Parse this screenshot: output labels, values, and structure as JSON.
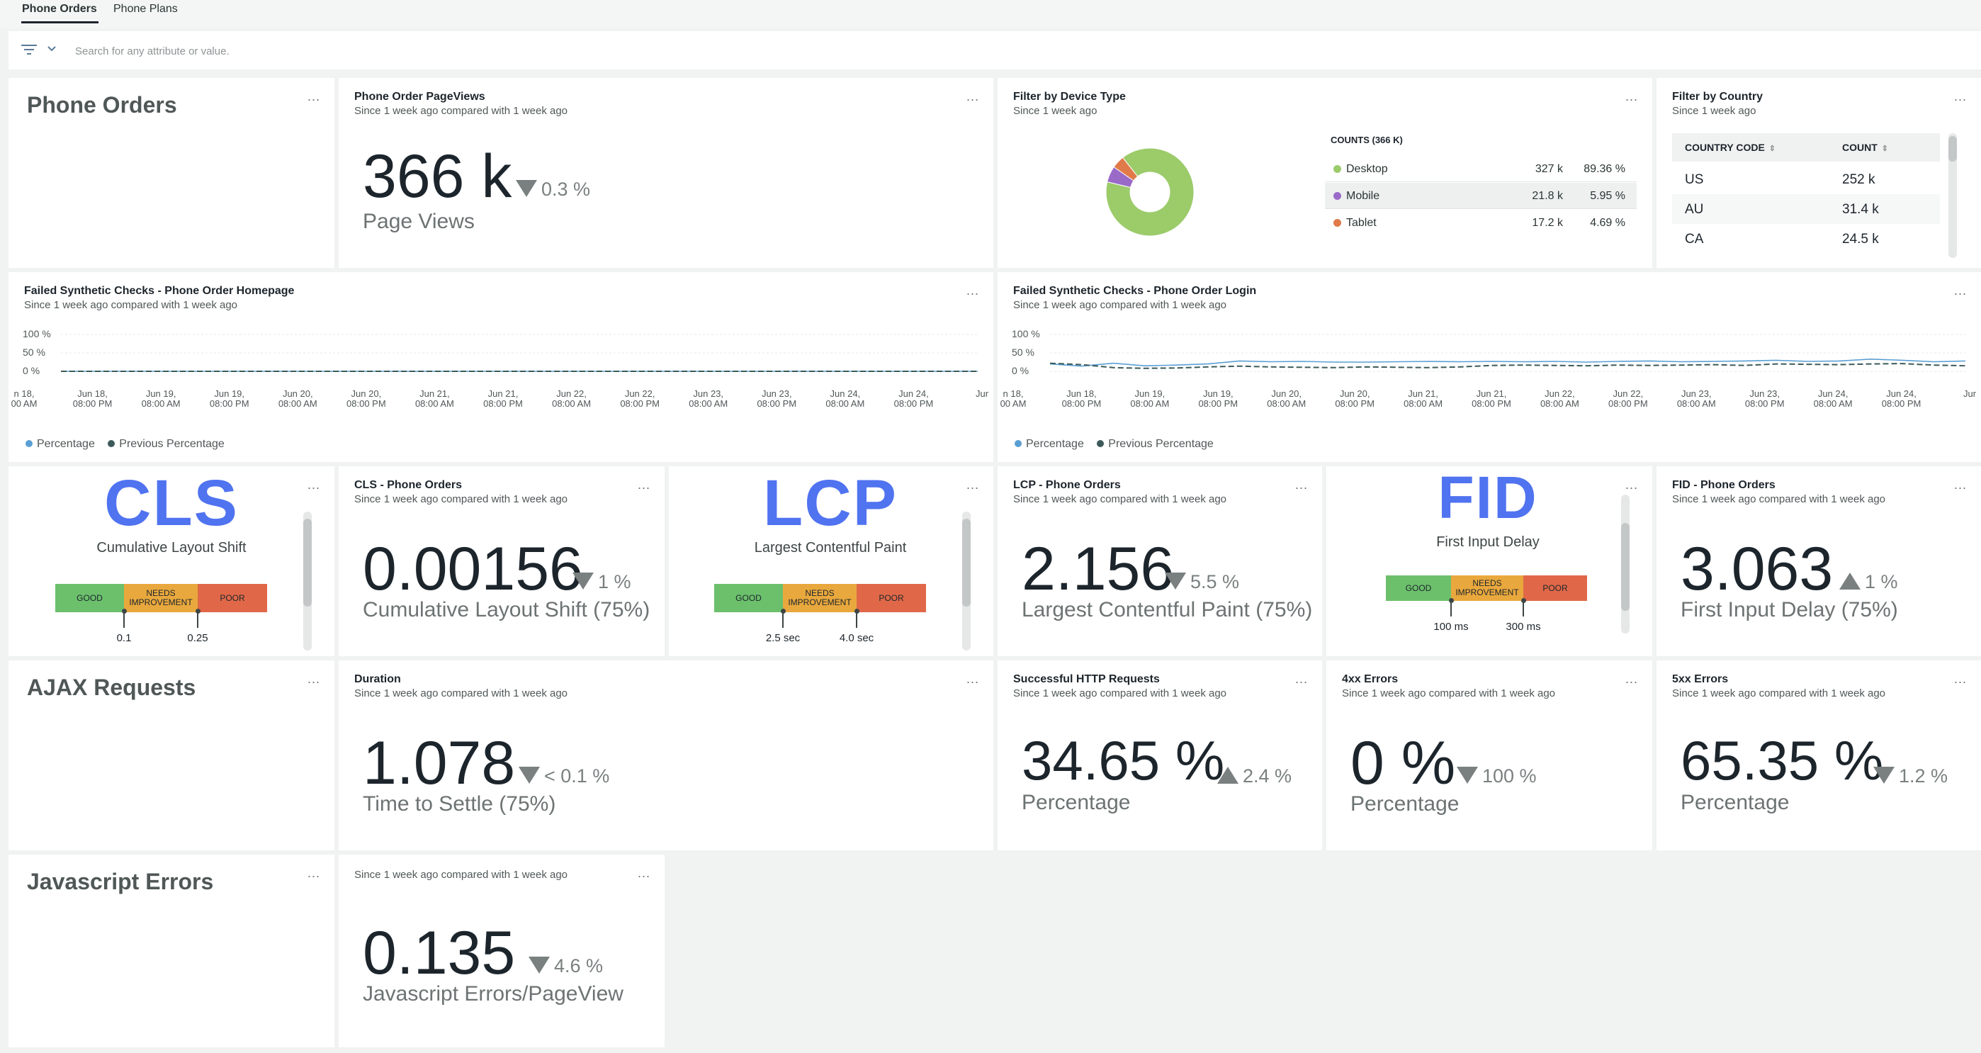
{
  "tabs": [
    "Phone Orders",
    "Phone Plans"
  ],
  "filter": {
    "placeholder": "Search for any attribute or value."
  },
  "more_label": "...",
  "sections": {
    "phone_orders": "Phone Orders",
    "ajax": "AJAX Requests",
    "js_errors": "Javascript Errors"
  },
  "pageviews": {
    "title": "Phone Order PageViews",
    "subtitle": "Since 1 week ago compared with 1 week ago",
    "value": "366 k",
    "delta": "0.3 %",
    "label": "Page Views"
  },
  "device": {
    "title": "Filter by Device Type",
    "subtitle": "Since 1 week ago",
    "legend_title": "COUNTS (366 K)",
    "rows": [
      {
        "name": "Desktop",
        "count": "327 k",
        "pct": "89.36 %",
        "color": "#9ccb6a",
        "value": 89.36
      },
      {
        "name": "Mobile",
        "count": "21.8 k",
        "pct": "5.95 %",
        "color": "#9a6ac8",
        "value": 5.95
      },
      {
        "name": "Tablet",
        "count": "17.2 k",
        "pct": "4.69 %",
        "color": "#e07a4a",
        "value": 4.69
      }
    ]
  },
  "country": {
    "title": "Filter by Country",
    "subtitle": "Since 1 week ago",
    "col1": "COUNTRY CODE",
    "col2": "COUNT",
    "rows": [
      {
        "code": "US",
        "count": "252 k"
      },
      {
        "code": "AU",
        "count": "31.4 k"
      },
      {
        "code": "CA",
        "count": "24.5 k"
      }
    ]
  },
  "synthetic_home": {
    "title": "Failed Synthetic Checks - Phone Order Homepage",
    "subtitle": "Since 1 week ago compared with 1 week ago"
  },
  "synthetic_login": {
    "title": "Failed Synthetic Checks - Phone Order Login",
    "subtitle": "Since 1 week ago compared with 1 week ago"
  },
  "chart_legend": {
    "current": "Percentage",
    "previous": "Previous Percentage"
  },
  "chart_data": [
    {
      "type": "line",
      "title": "Failed Synthetic Checks - Phone Order Homepage",
      "y_ticks": [
        "100 %",
        "50 %",
        "0 %"
      ],
      "ylim": [
        0,
        100
      ],
      "x_ticks": [
        [
          "n 18,",
          "00 AM"
        ],
        [
          "Jun 18,",
          "08:00 PM"
        ],
        [
          "Jun 19,",
          "08:00 AM"
        ],
        [
          "Jun 19,",
          "08:00 PM"
        ],
        [
          "Jun 20,",
          "08:00 AM"
        ],
        [
          "Jun 20,",
          "08:00 PM"
        ],
        [
          "Jun 21,",
          "08:00 AM"
        ],
        [
          "Jun 21,",
          "08:00 PM"
        ],
        [
          "Jun 22,",
          "08:00 AM"
        ],
        [
          "Jun 22,",
          "08:00 PM"
        ],
        [
          "Jun 23,",
          "08:00 AM"
        ],
        [
          "Jun 23,",
          "08:00 PM"
        ],
        [
          "Jun 24,",
          "08:00 AM"
        ],
        [
          "Jun 24,",
          "08:00 PM"
        ],
        [
          "Jur",
          ""
        ]
      ],
      "series": [
        {
          "name": "Percentage",
          "color": "#5a9fd4",
          "values": [
            0,
            0,
            0,
            0,
            0,
            0,
            0,
            0,
            0,
            0,
            0,
            0,
            0,
            0,
            0,
            0,
            0,
            0,
            0,
            0,
            0,
            0,
            0,
            0,
            0,
            0,
            0,
            0,
            0,
            0
          ]
        },
        {
          "name": "Previous Percentage",
          "color": "#3d5a5a",
          "values": [
            0,
            0,
            0,
            0,
            0,
            0,
            0,
            0,
            0,
            0,
            0,
            0,
            0,
            0,
            0,
            0,
            0,
            0,
            0,
            0,
            0,
            0,
            0,
            0,
            0,
            0,
            0,
            0,
            0,
            0
          ]
        }
      ]
    },
    {
      "type": "line",
      "title": "Failed Synthetic Checks - Phone Order Login",
      "y_ticks": [
        "100 %",
        "50 %",
        "0 %"
      ],
      "ylim": [
        0,
        100
      ],
      "x_ticks": [
        [
          "n 18,",
          "00 AM"
        ],
        [
          "Jun 18,",
          "08:00 PM"
        ],
        [
          "Jun 19,",
          "08:00 AM"
        ],
        [
          "Jun 19,",
          "08:00 PM"
        ],
        [
          "Jun 20,",
          "08:00 AM"
        ],
        [
          "Jun 20,",
          "08:00 PM"
        ],
        [
          "Jun 21,",
          "08:00 AM"
        ],
        [
          "Jun 21,",
          "08:00 PM"
        ],
        [
          "Jun 22,",
          "08:00 AM"
        ],
        [
          "Jun 22,",
          "08:00 PM"
        ],
        [
          "Jun 23,",
          "08:00 AM"
        ],
        [
          "Jun 23,",
          "08:00 PM"
        ],
        [
          "Jun 24,",
          "08:00 AM"
        ],
        [
          "Jun 24,",
          "08:00 PM"
        ],
        [
          "Jur",
          ""
        ]
      ],
      "series": [
        {
          "name": "Percentage",
          "color": "#5a9fd4",
          "values": [
            20,
            14,
            22,
            15,
            17,
            20,
            28,
            26,
            27,
            25,
            25,
            26,
            27,
            26,
            27,
            26,
            27,
            25,
            27,
            28,
            26,
            27,
            28,
            30,
            27,
            28,
            33,
            30,
            26,
            28
          ]
        },
        {
          "name": "Previous Percentage",
          "color": "#3d5a5a",
          "values": [
            22,
            18,
            10,
            8,
            9,
            12,
            14,
            12,
            11,
            10,
            12,
            11,
            10,
            12,
            16,
            17,
            16,
            15,
            17,
            16,
            17,
            18,
            16,
            20,
            19,
            18,
            20,
            21,
            17,
            15
          ]
        }
      ]
    }
  ],
  "cls": {
    "big": "CLS",
    "sub": "Cumulative Layout Shift",
    "good": "GOOD",
    "ni": "NEEDS IMPROVEMENT",
    "poor": "POOR",
    "t1": "0.1",
    "t2": "0.25",
    "title": "CLS - Phone Orders",
    "subtitle": "Since 1 week ago compared with 1 week ago",
    "value": "0.00156",
    "delta": "1 %",
    "label": "Cumulative Layout Shift (75%)"
  },
  "lcp": {
    "big": "LCP",
    "sub": "Largest Contentful Paint",
    "good": "GOOD",
    "ni": "NEEDS IMPROVEMENT",
    "poor": "POOR",
    "t1": "2.5 sec",
    "t2": "4.0 sec",
    "title": "LCP - Phone Orders",
    "subtitle": "Since 1 week ago compared with 1 week ago",
    "value": "2.156",
    "delta": "5.5 %",
    "label": "Largest Contentful Paint (75%)"
  },
  "fid": {
    "big": "FID",
    "sub": "First Input Delay",
    "good": "GOOD",
    "ni": "NEEDS IMPROVEMENT",
    "poor": "POOR",
    "t1": "100 ms",
    "t2": "300 ms",
    "title": "FID - Phone Orders",
    "subtitle": "Since 1 week ago compared with 1 week ago",
    "value": "3.063",
    "delta": "1 %",
    "label": "First Input Delay (75%)"
  },
  "duration": {
    "title": "Duration",
    "subtitle": "Since 1 week ago compared with 1 week ago",
    "value": "1.078",
    "delta": "< 0.1 %",
    "label": "Time to Settle (75%)"
  },
  "http_success": {
    "title": "Successful HTTP Requests",
    "subtitle": "Since 1 week ago compared with 1 week ago",
    "value": "34.65 %",
    "delta": "2.4 %",
    "label": "Percentage"
  },
  "err4xx": {
    "title": "4xx Errors",
    "subtitle": "Since 1 week ago compared with 1 week ago",
    "value": "0 %",
    "delta": "100 %",
    "label": "Percentage"
  },
  "err5xx": {
    "title": "5xx Errors",
    "subtitle": "Since 1 week ago compared with 1 week ago",
    "value": "65.35 %",
    "delta": "1.2 %",
    "label": "Percentage"
  },
  "jserr": {
    "subtitle": "Since 1 week ago compared with 1 week ago",
    "value": "0.135",
    "delta": "4.6 %",
    "label": "Javascript Errors/PageView"
  }
}
